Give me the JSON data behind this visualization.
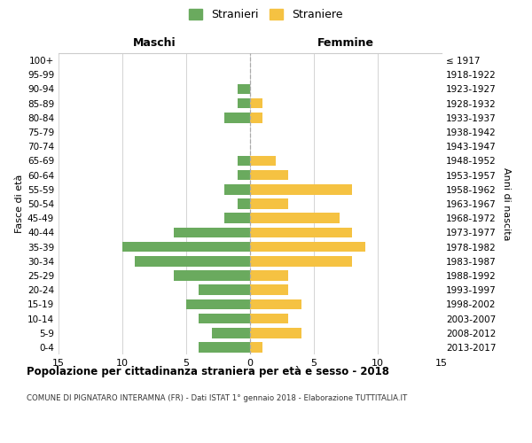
{
  "age_groups": [
    "0-4",
    "5-9",
    "10-14",
    "15-19",
    "20-24",
    "25-29",
    "30-34",
    "35-39",
    "40-44",
    "45-49",
    "50-54",
    "55-59",
    "60-64",
    "65-69",
    "70-74",
    "75-79",
    "80-84",
    "85-89",
    "90-94",
    "95-99",
    "100+"
  ],
  "birth_years": [
    "2013-2017",
    "2008-2012",
    "2003-2007",
    "1998-2002",
    "1993-1997",
    "1988-1992",
    "1983-1987",
    "1978-1982",
    "1973-1977",
    "1968-1972",
    "1963-1967",
    "1958-1962",
    "1953-1957",
    "1948-1952",
    "1943-1947",
    "1938-1942",
    "1933-1937",
    "1928-1932",
    "1923-1927",
    "1918-1922",
    "≤ 1917"
  ],
  "maschi": [
    4,
    3,
    4,
    5,
    4,
    6,
    9,
    10,
    6,
    2,
    1,
    2,
    1,
    1,
    0,
    0,
    2,
    1,
    1,
    0,
    0
  ],
  "femmine": [
    1,
    4,
    3,
    4,
    3,
    3,
    8,
    9,
    8,
    7,
    3,
    8,
    3,
    2,
    0,
    0,
    1,
    1,
    0,
    0,
    0
  ],
  "color_maschi": "#6aaa5e",
  "color_femmine": "#f5c242",
  "title": "Popolazione per cittadinanza straniera per età e sesso - 2018",
  "subtitle": "COMUNE DI PIGNATARO INTERAMNA (FR) - Dati ISTAT 1° gennaio 2018 - Elaborazione TUTTITALIA.IT",
  "ylabel_left": "Fasce di età",
  "ylabel_right": "Anni di nascita",
  "xlabel_left": "Maschi",
  "xlabel_right": "Femmine",
  "legend_maschi": "Stranieri",
  "legend_femmine": "Straniere",
  "xlim": 15,
  "background_color": "#ffffff",
  "grid_color": "#cccccc"
}
